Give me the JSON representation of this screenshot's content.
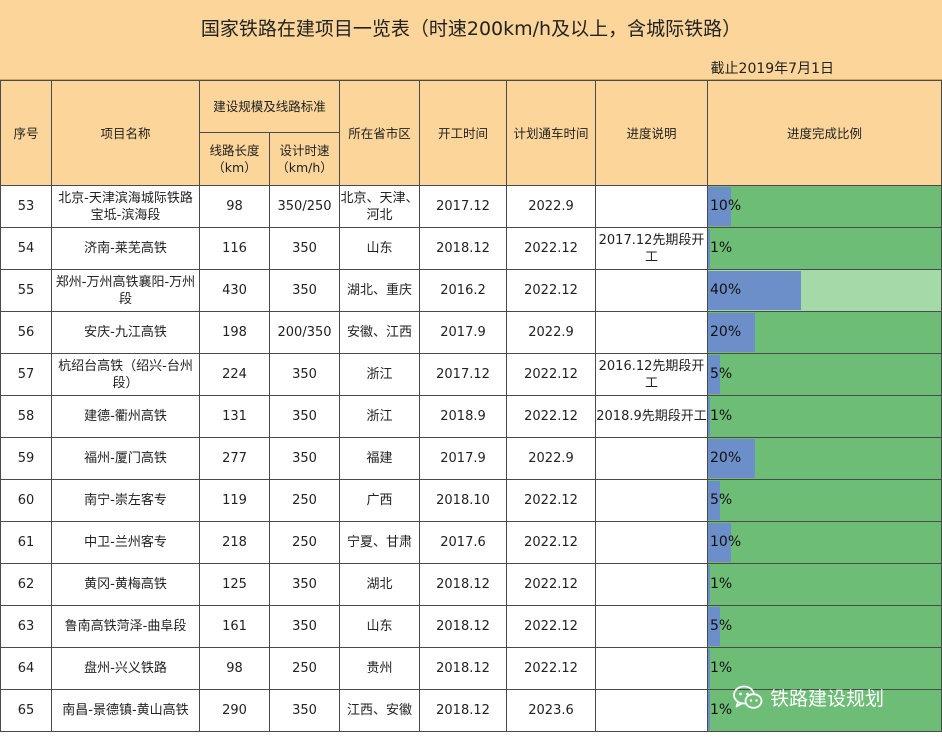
{
  "title": "国家铁路在建项目一览表（时速200km/h及以上，含城际铁路）",
  "as_of": "截止2019年7月1日",
  "headers": {
    "seq": "序号",
    "name": "项目名称",
    "scale": "建设规模及线路标准",
    "length": "线路长度（km）",
    "speed": "设计时速（km/h）",
    "province": "所在省市区",
    "start": "开工时间",
    "open": "计划通车时间",
    "note": "进度说明",
    "progress": "进度完成比例"
  },
  "rows": [
    {
      "seq": "53",
      "name": "北京-天津滨海城际铁路宝坻-滨海段",
      "length": "98",
      "speed": "350/250",
      "province": "北京、天津、河北",
      "start": "2017.12",
      "open": "2022.9",
      "note": "",
      "progress_label": "10%",
      "progress": 0.1
    },
    {
      "seq": "54",
      "name": "济南-莱芜高铁",
      "length": "116",
      "speed": "350",
      "province": "山东",
      "start": "2018.12",
      "open": "2022.12",
      "note": "2017.12先期段开工",
      "progress_label": "1%",
      "progress": 0.01
    },
    {
      "seq": "55",
      "name": "郑州-万州高铁襄阳-万州段",
      "length": "430",
      "speed": "350",
      "province": "湖北、重庆",
      "start": "2016.2",
      "open": "2022.12",
      "note": "",
      "progress_label": "40%",
      "progress": 0.4
    },
    {
      "seq": "56",
      "name": "安庆-九江高铁",
      "length": "198",
      "speed": "200/350",
      "province": "安徽、江西",
      "start": "2017.9",
      "open": "2022.9",
      "note": "",
      "progress_label": "20%",
      "progress": 0.2
    },
    {
      "seq": "57",
      "name": "杭绍台高铁（绍兴-台州段）",
      "length": "224",
      "speed": "350",
      "province": "浙江",
      "start": "2017.12",
      "open": "2022.12",
      "note": "2016.12先期段开工",
      "progress_label": "5%",
      "progress": 0.05
    },
    {
      "seq": "58",
      "name": "建德-衢州高铁",
      "length": "131",
      "speed": "350",
      "province": "浙江",
      "start": "2018.9",
      "open": "2022.12",
      "note": "2018.9先期段开工",
      "progress_label": "1%",
      "progress": 0.01
    },
    {
      "seq": "59",
      "name": "福州-厦门高铁",
      "length": "277",
      "speed": "350",
      "province": "福建",
      "start": "2017.9",
      "open": "2022.9",
      "note": "",
      "progress_label": "20%",
      "progress": 0.2
    },
    {
      "seq": "60",
      "name": "南宁-崇左客专",
      "length": "119",
      "speed": "250",
      "province": "广西",
      "start": "2018.10",
      "open": "2022.12",
      "note": "",
      "progress_label": "5%",
      "progress": 0.05
    },
    {
      "seq": "61",
      "name": "中卫-兰州客专",
      "length": "218",
      "speed": "250",
      "province": "宁夏、甘肃",
      "start": "2017.6",
      "open": "2022.12",
      "note": "",
      "progress_label": "10%",
      "progress": 0.1
    },
    {
      "seq": "62",
      "name": "黄冈-黄梅高铁",
      "length": "125",
      "speed": "350",
      "province": "湖北",
      "start": "2018.12",
      "open": "2022.12",
      "note": "",
      "progress_label": "1%",
      "progress": 0.01
    },
    {
      "seq": "63",
      "name": "鲁南高铁菏泽-曲阜段",
      "length": "161",
      "speed": "350",
      "province": "山东",
      "start": "2018.12",
      "open": "2022.12",
      "note": "",
      "progress_label": "5%",
      "progress": 0.05
    },
    {
      "seq": "64",
      "name": "盘州-兴义铁路",
      "length": "98",
      "speed": "250",
      "province": "贵州",
      "start": "2018.12",
      "open": "2022.12",
      "note": "",
      "progress_label": "1%",
      "progress": 0.01
    },
    {
      "seq": "65",
      "name": "南昌-景德镇-黄山高铁",
      "length": "290",
      "speed": "350",
      "province": "江西、安徽",
      "start": "2018.12",
      "open": "2023.6",
      "note": "",
      "progress_label": "1%",
      "progress": 0.01
    }
  ],
  "watermark": "铁路建设规划",
  "watermark_icon": "wechat-icon",
  "colors": {
    "header_bg": "#fbd59a",
    "bar_bg": "#6dbd77",
    "bar_bg_light": "#a4d9a8",
    "bar_fill": "#6c8fc9"
  }
}
